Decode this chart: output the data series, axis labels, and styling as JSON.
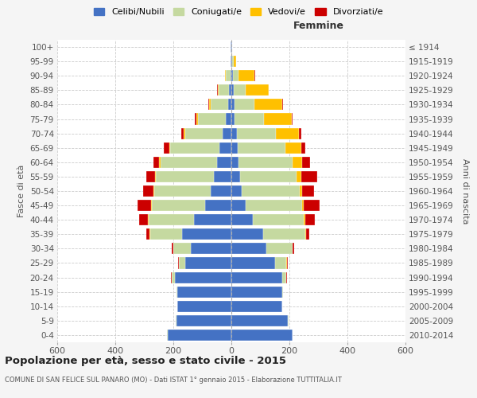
{
  "age_groups": [
    "0-4",
    "5-9",
    "10-14",
    "15-19",
    "20-24",
    "25-29",
    "30-34",
    "35-39",
    "40-44",
    "45-49",
    "50-54",
    "55-59",
    "60-64",
    "65-69",
    "70-74",
    "75-79",
    "80-84",
    "85-89",
    "90-94",
    "95-99",
    "100+"
  ],
  "birth_years": [
    "2010-2014",
    "2005-2009",
    "2000-2004",
    "1995-1999",
    "1990-1994",
    "1985-1989",
    "1980-1984",
    "1975-1979",
    "1970-1974",
    "1965-1969",
    "1960-1964",
    "1955-1959",
    "1950-1954",
    "1945-1949",
    "1940-1944",
    "1935-1939",
    "1930-1934",
    "1925-1929",
    "1920-1924",
    "1915-1919",
    "≤ 1914"
  ],
  "males": {
    "celibi": [
      220,
      190,
      185,
      185,
      195,
      160,
      140,
      170,
      130,
      90,
      70,
      60,
      50,
      40,
      30,
      20,
      12,
      8,
      4,
      2,
      2
    ],
    "coniugati": [
      2,
      2,
      1,
      3,
      10,
      20,
      60,
      110,
      155,
      185,
      195,
      200,
      195,
      170,
      130,
      95,
      60,
      35,
      15,
      2,
      0
    ],
    "vedovi": [
      0,
      0,
      0,
      0,
      1,
      1,
      1,
      2,
      2,
      2,
      3,
      3,
      3,
      4,
      5,
      5,
      5,
      3,
      2,
      0,
      0
    ],
    "divorziati": [
      0,
      0,
      0,
      1,
      2,
      3,
      5,
      10,
      30,
      45,
      35,
      30,
      20,
      18,
      8,
      5,
      3,
      2,
      0,
      0,
      0
    ]
  },
  "females": {
    "nubili": [
      210,
      195,
      175,
      175,
      175,
      150,
      120,
      110,
      75,
      50,
      35,
      30,
      25,
      22,
      18,
      12,
      10,
      8,
      5,
      2,
      2
    ],
    "coniugate": [
      1,
      1,
      1,
      4,
      15,
      40,
      90,
      145,
      175,
      195,
      200,
      195,
      185,
      165,
      135,
      100,
      70,
      40,
      20,
      5,
      0
    ],
    "vedove": [
      0,
      0,
      0,
      0,
      0,
      1,
      2,
      3,
      4,
      5,
      10,
      15,
      35,
      55,
      80,
      95,
      95,
      80,
      55,
      10,
      0
    ],
    "divorziate": [
      0,
      0,
      0,
      0,
      1,
      3,
      5,
      10,
      35,
      55,
      40,
      55,
      25,
      12,
      8,
      5,
      3,
      2,
      1,
      0,
      0
    ]
  },
  "colors": {
    "celibi": "#4472c4",
    "coniugati": "#c5d9a0",
    "vedovi": "#ffc000",
    "divorziati": "#cc0000"
  },
  "xlim": 600,
  "title": "Popolazione per età, sesso e stato civile - 2015",
  "subtitle": "COMUNE DI SAN FELICE SUL PANARO (MO) - Dati ISTAT 1° gennaio 2015 - Elaborazione TUTTITALIA.IT",
  "ylabel_left": "Fasce di età",
  "ylabel_right": "Anni di nascita",
  "xlabel_right": "Femmine",
  "bg_color": "#f5f5f5",
  "plot_bg_color": "#ffffff",
  "legend_labels": [
    "Celibi/Nubili",
    "Coniugati/e",
    "Vedovi/e",
    "Divorziati/e"
  ]
}
